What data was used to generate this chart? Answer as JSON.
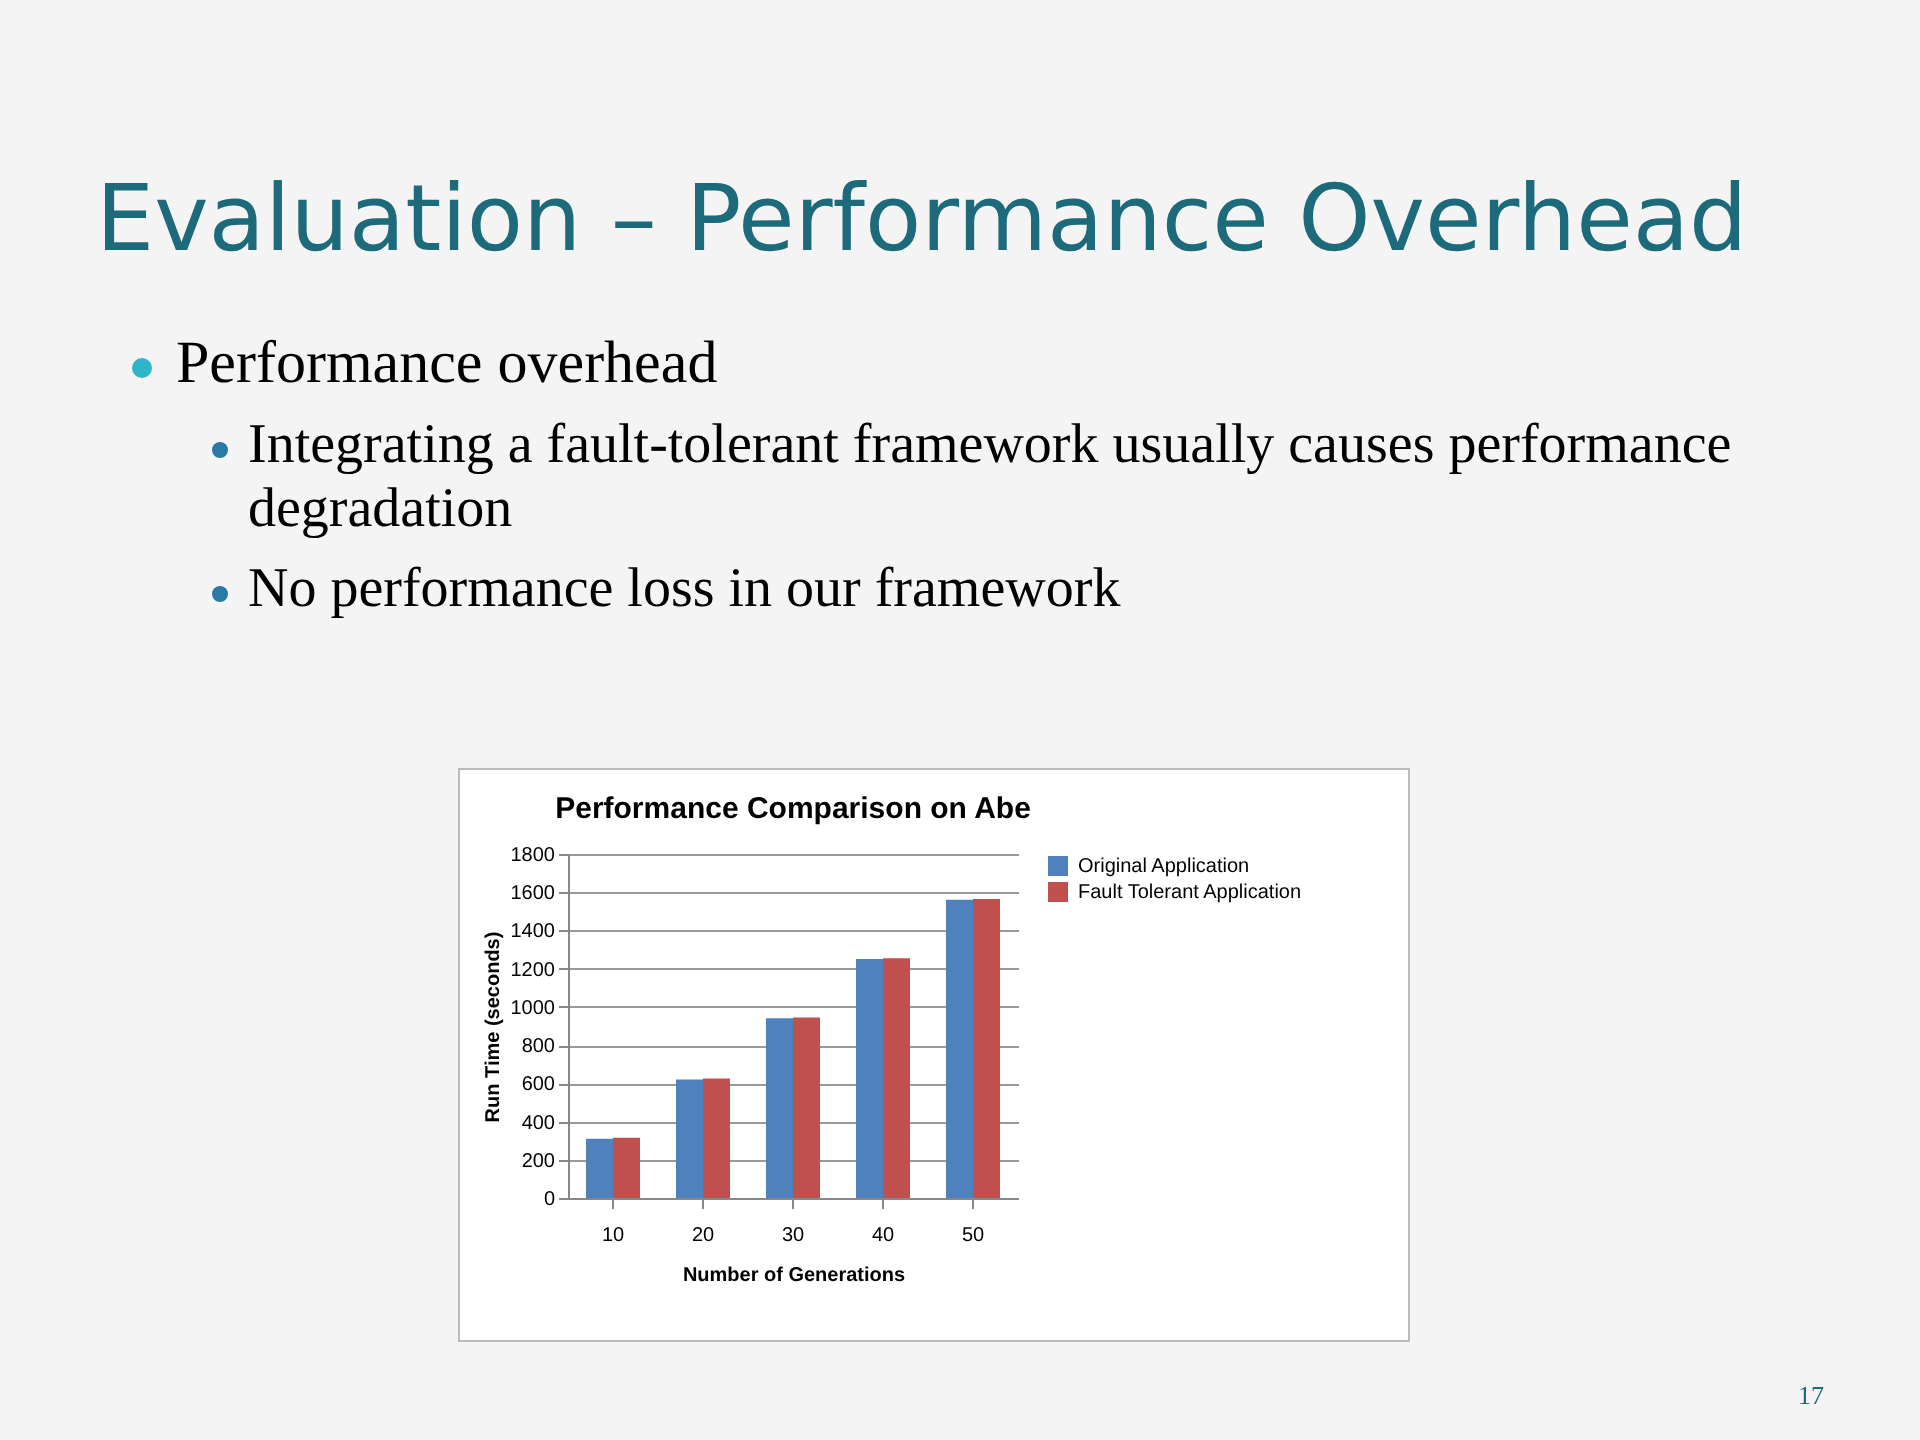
{
  "chart_data": {
    "type": "bar",
    "title": "Performance Comparison on Abe",
    "xlabel": "Number of Generations",
    "ylabel": "Run Time (seconds)",
    "categories": [
      "10",
      "20",
      "30",
      "40",
      "50"
    ],
    "series": [
      {
        "name": "Original Application",
        "color": "#4f81bd",
        "values": [
          310,
          620,
          940,
          1250,
          1560
        ]
      },
      {
        "name": "Fault Tolerant Application",
        "color": "#c0504d",
        "values": [
          315,
          625,
          945,
          1255,
          1565
        ]
      }
    ],
    "ylim": [
      0,
      1800
    ],
    "yticks": [
      0,
      200,
      400,
      600,
      800,
      1000,
      1200,
      1400,
      1600,
      1800
    ],
    "grid": "y",
    "legend": "right",
    "annotations": [
      "Evaluation – Performance Overhead",
      "Performance overhead",
      "Integrating a fault-tolerant framework usually causes performance degradation",
      "No performance loss in our framework",
      "17"
    ]
  }
}
